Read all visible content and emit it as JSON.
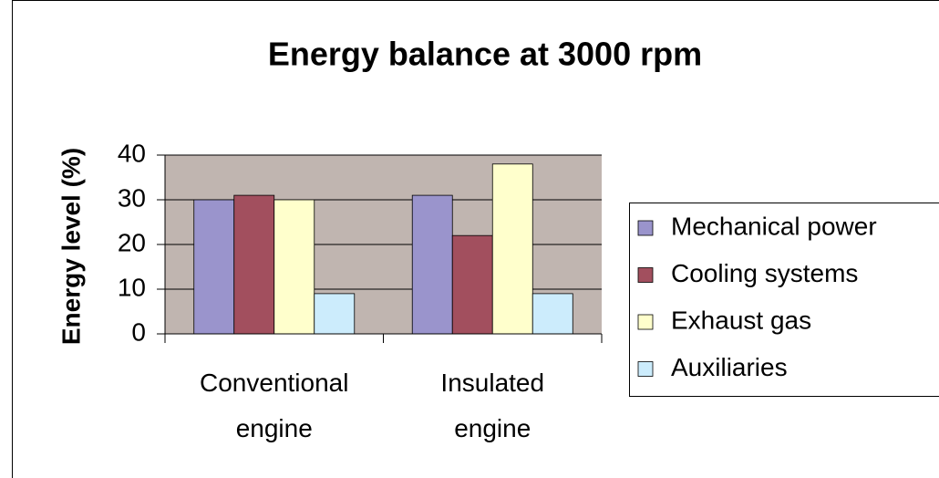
{
  "chart_data": {
    "type": "bar",
    "title": "Energy balance at 3000 rpm",
    "y_label": "Energy level (%)",
    "categories": [
      "Conventional engine",
      "Insulated engine"
    ],
    "series": [
      {
        "name": "Mechanical power",
        "color": "#9a94cc",
        "values": [
          30,
          31
        ]
      },
      {
        "name": "Cooling systems",
        "color": "#a24f5e",
        "values": [
          31,
          22
        ]
      },
      {
        "name": "Exhaust gas",
        "color": "#ffffcc",
        "values": [
          30,
          38
        ]
      },
      {
        "name": "Auxiliaries",
        "color": "#ccecfc",
        "values": [
          9,
          9
        ]
      }
    ],
    "ylim": [
      0,
      40
    ],
    "yticks": [
      0,
      10,
      20,
      30,
      40
    ],
    "grid": true,
    "legend": "right"
  }
}
